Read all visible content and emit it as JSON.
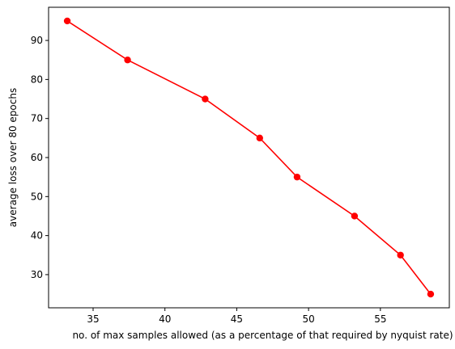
{
  "chart_data": {
    "type": "line",
    "title": "",
    "xlabel": "no. of max samples allowed (as a percentage of that required by nyquist rate)",
    "ylabel": "average loss over 80 epochs",
    "xlim": [
      31.9,
      59.8
    ],
    "ylim": [
      21.5,
      98.5
    ],
    "xticks": [
      35,
      40,
      45,
      50,
      55
    ],
    "yticks": [
      30,
      40,
      50,
      60,
      70,
      80,
      90
    ],
    "grid": false,
    "legend": "none",
    "series": [
      {
        "color": "#ff0000",
        "marker": "circle",
        "x": [
          33.2,
          37.4,
          42.8,
          46.6,
          49.2,
          53.2,
          56.4,
          58.5
        ],
        "y": [
          95,
          85,
          75,
          65,
          55,
          45,
          35,
          25
        ]
      }
    ]
  }
}
